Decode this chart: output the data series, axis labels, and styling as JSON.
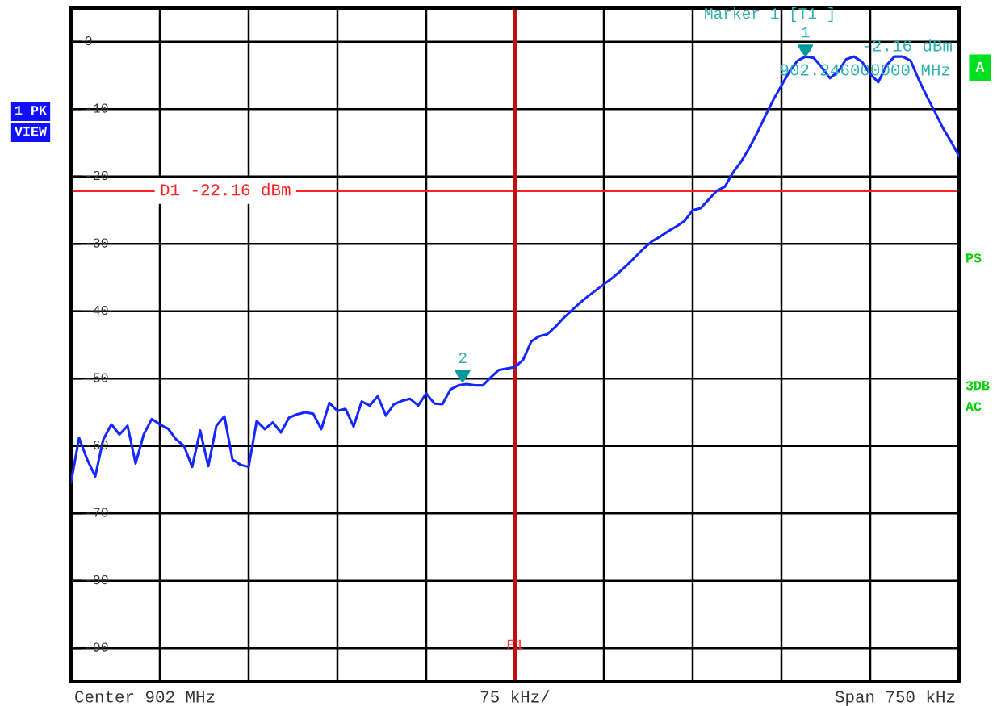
{
  "chart_data": {
    "type": "line",
    "categories": [
      null,
      null,
      null,
      null,
      null,
      null,
      null,
      null,
      null,
      null,
      null,
      null,
      null,
      null,
      null,
      null,
      null,
      null,
      null,
      null,
      null,
      null,
      null,
      null,
      null,
      null,
      null,
      null,
      null,
      null,
      null,
      null,
      null,
      null,
      null,
      null,
      null,
      null,
      null,
      null,
      null,
      null,
      null,
      null,
      null,
      null,
      null,
      null,
      null,
      null,
      null,
      null,
      null,
      null,
      null,
      null,
      null,
      null,
      null,
      null,
      null,
      null,
      null,
      null,
      null,
      null,
      null,
      null,
      null,
      null,
      null,
      null,
      null,
      null,
      null,
      null,
      null,
      null,
      null,
      null,
      null,
      null,
      null,
      null,
      null,
      null,
      null,
      null,
      null,
      null,
      null,
      null,
      null,
      null,
      null,
      null,
      null,
      null,
      null,
      null,
      null,
      null,
      null,
      null,
      null,
      null,
      null,
      null,
      null,
      null,
      null
    ],
    "ylim": [
      -95,
      5
    ],
    "yticks": [
      0,
      -10,
      -20,
      -30,
      -40,
      -50,
      -60,
      -70,
      -80,
      -90
    ],
    "grid": true,
    "line_style": "solid",
    "series": [
      {
        "color": "#1428ff",
        "values": [
          -65.4,
          -58.8,
          -62.0,
          -64.5,
          -59.0,
          -56.8,
          -58.3,
          -57.0,
          -62.6,
          -58.3,
          -56.0,
          -56.8,
          -57.4,
          -59.0,
          -60.0,
          -63.1,
          -57.7,
          -63.0,
          -57.0,
          -55.6,
          -62.0,
          -62.8,
          -63.1,
          -56.3,
          -57.5,
          -56.5,
          -58.0,
          -55.8,
          -55.3,
          -55.0,
          -55.2,
          -57.5,
          -53.6,
          -54.8,
          -54.5,
          -57.1,
          -53.4,
          -54.0,
          -52.6,
          -55.5,
          -53.8,
          -53.3,
          -53.0,
          -54.0,
          -52.2,
          -53.7,
          -53.8,
          -51.6,
          -51.0,
          -50.8,
          -51.0,
          -51.0,
          -49.8,
          -48.7,
          -48.5,
          -48.3,
          -47.2,
          -44.5,
          -43.7,
          -43.4,
          -42.3,
          -41.0,
          -39.9,
          -38.8,
          -37.8,
          -36.9,
          -36.0,
          -35.1,
          -34.1,
          -33.0,
          -31.8,
          -30.6,
          -29.6,
          -28.9,
          -28.1,
          -27.4,
          -26.6,
          -25.0,
          -24.7,
          -23.4,
          -22.1,
          -21.5,
          -19.4,
          -17.8,
          -15.8,
          -13.5,
          -11.0,
          -8.6,
          -6.5,
          -4.4,
          -2.8,
          -2.2,
          -2.4,
          -3.8,
          -5.4,
          -4.5,
          -2.6,
          -2.2,
          -3.0,
          -4.8,
          -6.0,
          -3.5,
          -2.2,
          -2.2,
          -2.8,
          -5.6,
          -8.1,
          -10.4,
          -12.8,
          -14.8,
          -17.0
        ]
      }
    ],
    "ref_lines": [
      {
        "axis": "y",
        "value": -22.16,
        "label": "D1 -22.16 dBm",
        "color": "#ff2020"
      }
    ],
    "annotations": [
      {
        "text": "1",
        "y": -2.16
      },
      {
        "text": "2",
        "y": -50.5
      },
      "Marker 1 [T1 ]",
      "-2.16 dBm",
      "902.246000000 MHz",
      "Center 902 MHz",
      "75 kHz/",
      "Span 750 kHz",
      "1 PK",
      "VIEW",
      "A",
      "PS",
      "3DB",
      "AC",
      "F1"
    ]
  }
}
